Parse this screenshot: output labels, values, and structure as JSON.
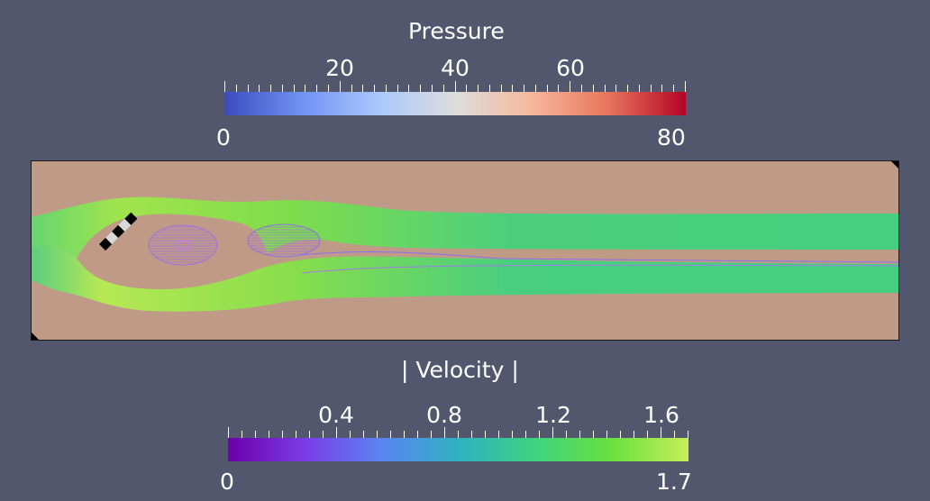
{
  "pressure_legend": {
    "title": "Pressure",
    "min_label": "0",
    "max_label": "80",
    "ticks": [
      "20",
      "40",
      "60"
    ],
    "range": [
      0,
      80
    ],
    "colormap": [
      "#3b4cc0",
      "#6f92f3",
      "#aac7fd",
      "#dddddd",
      "#f7b89c",
      "#e7745b",
      "#b40426"
    ]
  },
  "velocity_legend": {
    "title": "| Velocity |",
    "min_label": "0",
    "max_label": "1.7",
    "ticks": [
      "0.4",
      "0.8",
      "1.2",
      "1.6"
    ],
    "range": [
      0,
      1.7
    ],
    "colormap": [
      "#6a00a8",
      "#7b3be8",
      "#5b84f2",
      "#2fb1c2",
      "#3dd37f",
      "#6ae03f",
      "#c6ef5a"
    ]
  },
  "scene": {
    "background_color": "#52576e",
    "domain_color": "#bf9b87",
    "obstacle_color": "#000000"
  }
}
